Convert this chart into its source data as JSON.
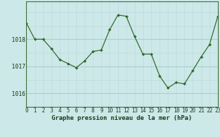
{
  "x": [
    0,
    1,
    2,
    3,
    4,
    5,
    6,
    7,
    8,
    9,
    10,
    11,
    12,
    13,
    14,
    15,
    16,
    17,
    18,
    19,
    20,
    21,
    22,
    23
  ],
  "y": [
    1018.6,
    1018.0,
    1018.0,
    1017.65,
    1017.25,
    1017.1,
    1016.95,
    1017.2,
    1017.55,
    1017.6,
    1018.35,
    1018.9,
    1018.85,
    1018.1,
    1017.45,
    1017.45,
    1016.65,
    1016.2,
    1016.4,
    1016.35,
    1016.85,
    1017.35,
    1017.8,
    1018.85
  ],
  "line_color": "#2d6a2d",
  "marker_color": "#2d6a2d",
  "bg_color": "#cde8e8",
  "grid_color_major": "#aacece",
  "grid_color_minor": "#bcdada",
  "xlabel": "Graphe pression niveau de la mer (hPa)",
  "xlabel_color": "#1a3a1a",
  "yticks": [
    1016,
    1017,
    1018
  ],
  "ylim": [
    1015.5,
    1019.4
  ],
  "xlim": [
    0,
    23
  ],
  "tick_fontsize": 5.5,
  "label_fontsize": 6.5
}
